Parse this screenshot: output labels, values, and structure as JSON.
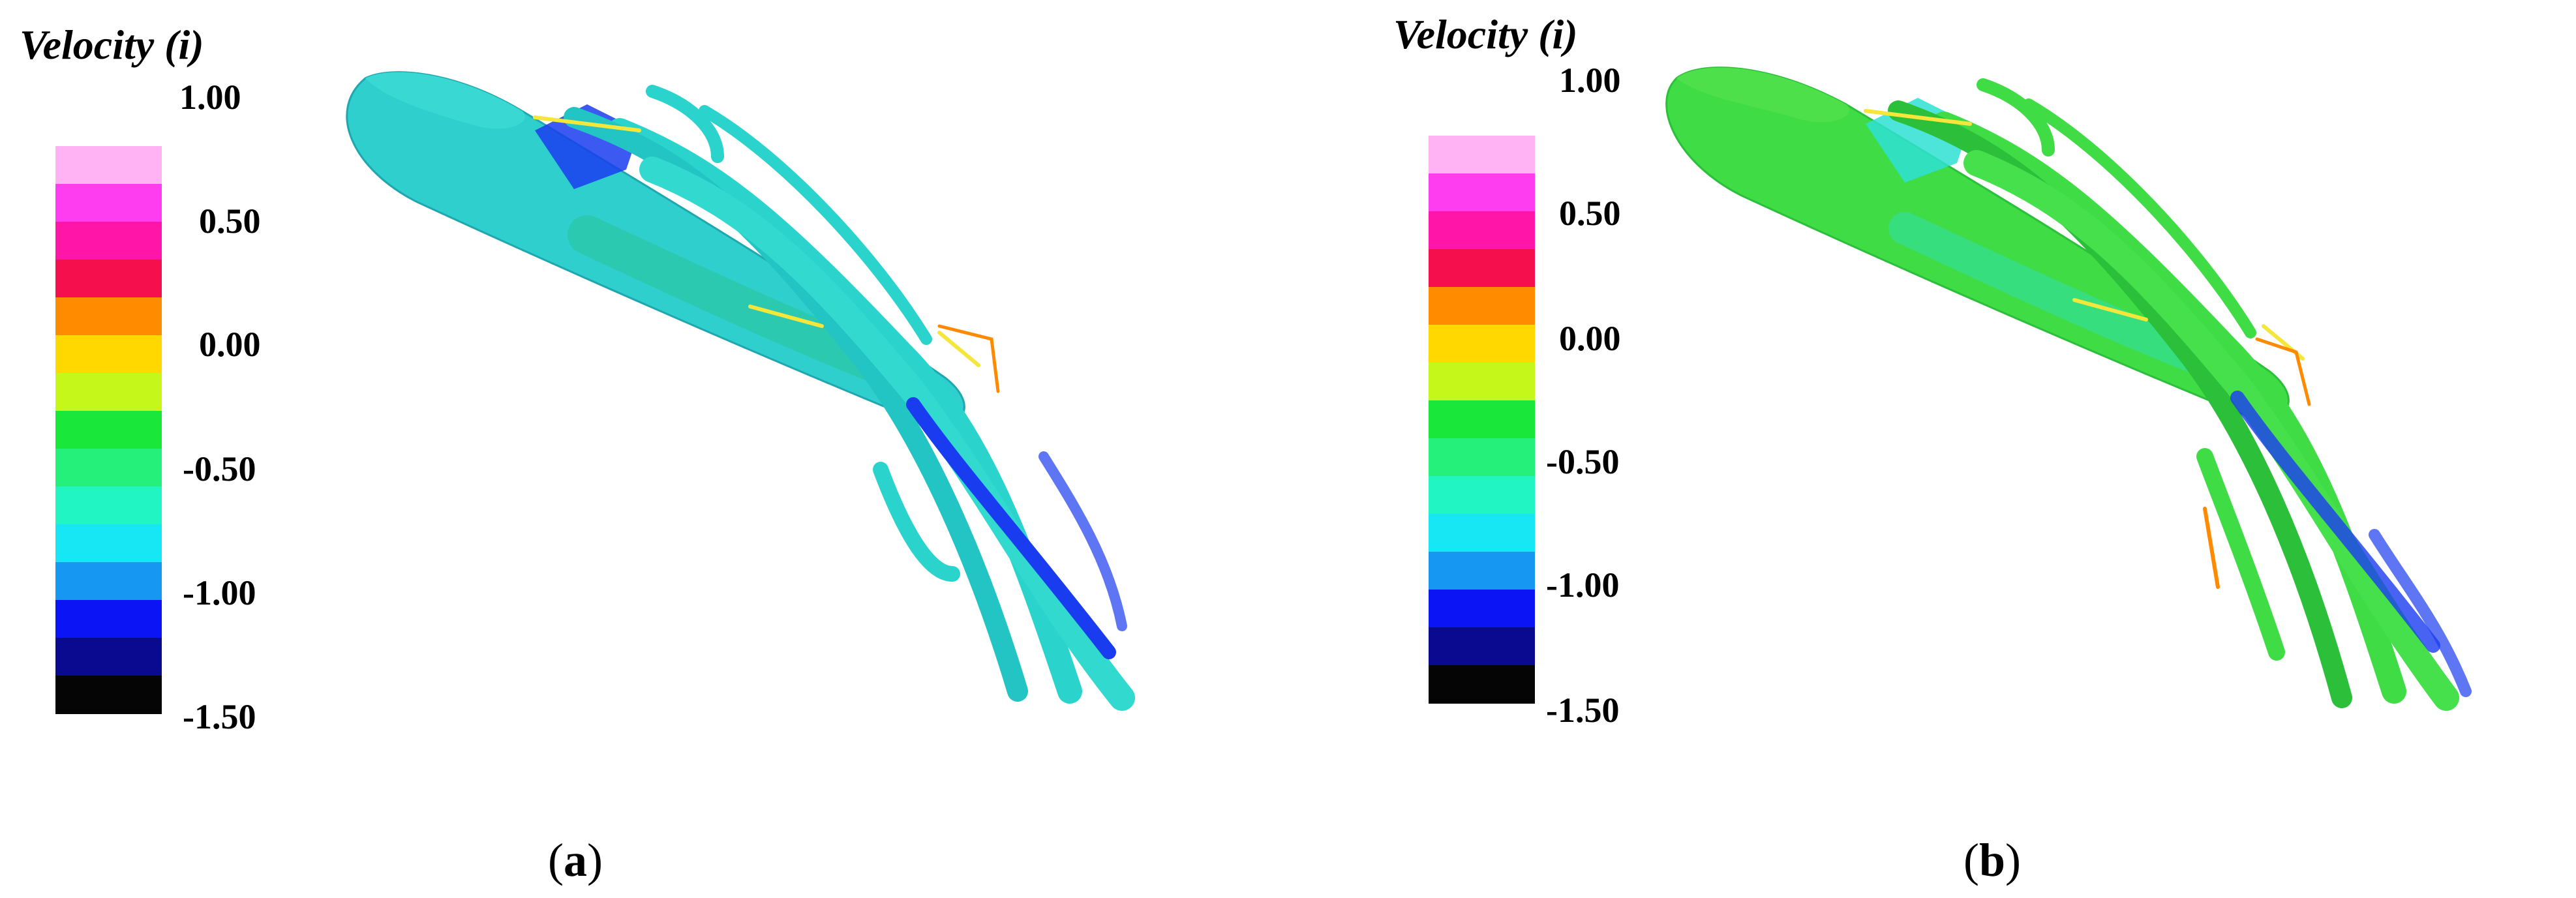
{
  "figure": {
    "panels": [
      {
        "id": "a",
        "legend_title": "Velocity (i)",
        "tick_labels": [
          "1.00",
          "0.50",
          "0.00",
          "-0.50",
          "-1.00",
          "-1.50"
        ],
        "subcaption": "a"
      },
      {
        "id": "b",
        "legend_title": "Velocity (i)",
        "tick_labels": [
          "1.00",
          "0.50",
          "0.00",
          "-0.50",
          "-1.00",
          "-1.50"
        ],
        "subcaption": "b"
      }
    ],
    "colorbar_colors": [
      "#ffb3f5",
      "#ff3df0",
      "#ff16a8",
      "#f5104d",
      "#ff8c00",
      "#ffd800",
      "#c6f71b",
      "#19e83a",
      "#25f07a",
      "#22f5c4",
      "#17e6f5",
      "#1697f2",
      "#0a14f5",
      "#0a0a90",
      "#050505"
    ],
    "body_colors": {
      "cyan": "#2ee0d4",
      "teal": "#20c6b9",
      "green": "#3fdc45",
      "deep_green": "#2bbf3a",
      "blue": "#1a3cf0",
      "yellow": "#f4e63a",
      "orange": "#ff8a00"
    }
  }
}
